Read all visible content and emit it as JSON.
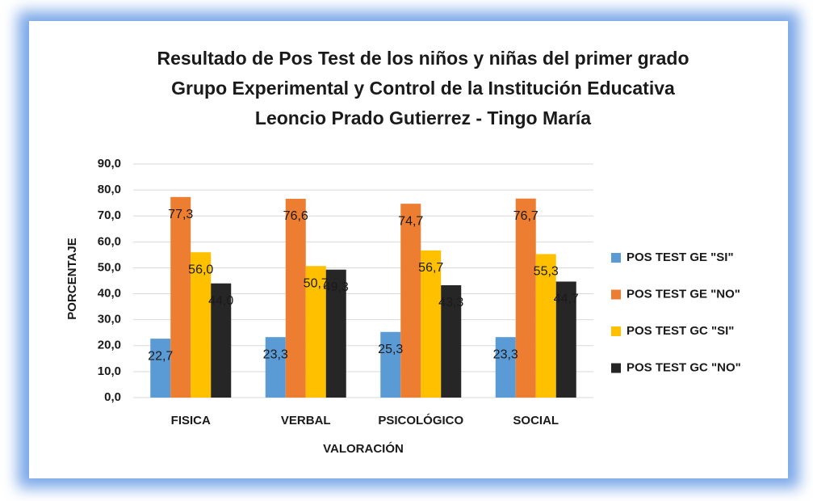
{
  "chart_data": {
    "type": "bar",
    "title": [
      "Resultado de Pos  Test de los niños y niñas del primer grado",
      "Grupo  Experimental y Control  de la Institución Educativa",
      "Leoncio Prado Gutierrez - Tingo María"
    ],
    "x_label": "VALORACIÓN",
    "y_label": "PORCENTAJE",
    "categories": [
      "FISICA",
      "VERBAL",
      "PSICOLÓGICO",
      "SOCIAL"
    ],
    "series": [
      {
        "name": "POS TEST GE \"SI\"",
        "color": "#5b9bd5",
        "values": [
          22.7,
          23.3,
          25.3,
          23.3
        ],
        "value_labels": [
          "22,7",
          "23,3",
          "25,3",
          "23,3"
        ]
      },
      {
        "name": "POS TEST GE \"NO\"",
        "color": "#ed7d31",
        "values": [
          77.3,
          76.6,
          74.7,
          76.7
        ],
        "value_labels": [
          "77,3",
          "76,6",
          "74,7",
          "76,7"
        ]
      },
      {
        "name": "POS TEST GC \"SI\"",
        "color": "#ffc000",
        "values": [
          56.0,
          50.7,
          56.7,
          55.3
        ],
        "value_labels": [
          "56,0",
          "50,7",
          "56,7",
          "55,3"
        ]
      },
      {
        "name": "POS TEST GC \"NO\"",
        "color": "#262626",
        "values": [
          44.0,
          49.3,
          43.3,
          44.7
        ],
        "value_labels": [
          "44,0",
          "49,3",
          "43,3",
          "44,7"
        ]
      }
    ],
    "ylim": [
      0,
      90
    ],
    "yticks": [
      {
        "value": 0,
        "label": "0,0"
      },
      {
        "value": 10,
        "label": "10,0"
      },
      {
        "value": 20,
        "label": "20,0"
      },
      {
        "value": 30,
        "label": "30,0"
      },
      {
        "value": 40,
        "label": "40,0"
      },
      {
        "value": 50,
        "label": "50,0"
      },
      {
        "value": 60,
        "label": "60,0"
      },
      {
        "value": 70,
        "label": "70,0"
      },
      {
        "value": 80,
        "label": "80,0"
      },
      {
        "value": 90,
        "label": "90,0"
      }
    ],
    "grid": true,
    "legend": "right"
  }
}
